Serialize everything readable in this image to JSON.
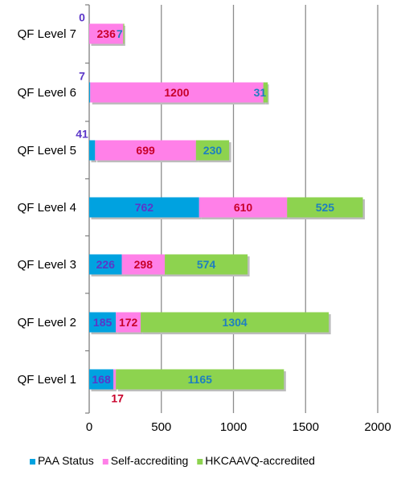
{
  "chart_data": {
    "type": "bar",
    "orientation": "horizontal",
    "stacked": true,
    "categories": [
      "QF Level 7",
      "QF Level 6",
      "QF Level 5",
      "QF Level 4",
      "QF Level 3",
      "QF Level 2",
      "QF Level 1"
    ],
    "series": [
      {
        "name": "PAA Status",
        "color": "#00A2E0",
        "label_color": "#5B36C8",
        "values": [
          0,
          7,
          41,
          762,
          226,
          185,
          168
        ]
      },
      {
        "name": "Self-accrediting",
        "color": "#FF80E8",
        "label_color": "#C8002A",
        "values": [
          236,
          1200,
          699,
          610,
          298,
          172,
          17
        ]
      },
      {
        "name": "HKCAAVQ-accredited",
        "color": "#8DD34F",
        "label_color": "#1D7FC0",
        "values": [
          7,
          31,
          230,
          525,
          574,
          1304,
          1165
        ]
      }
    ],
    "data_labels": {
      "QF Level 7": [
        "0",
        "236",
        "7"
      ],
      "QF Level 6": [
        "7",
        "1200",
        "31"
      ],
      "QF Level 5": [
        "41",
        "699",
        "230"
      ],
      "QF Level 4": [
        "762",
        "610",
        "525"
      ],
      "QF Level 3": [
        "226",
        "298",
        "574"
      ],
      "QF Level 2": [
        "185",
        "172",
        "1304"
      ],
      "QF Level 1": [
        "168",
        "17",
        "1165"
      ]
    },
    "xlim": [
      0,
      2000
    ],
    "xticks": [
      "0",
      "500",
      "1000",
      "1500",
      "2000"
    ],
    "xtick_values": [
      0,
      500,
      1000,
      1500,
      2000
    ],
    "grid": "vertical",
    "legend_position": "bottom",
    "title": "",
    "xlabel": "",
    "ylabel": ""
  }
}
